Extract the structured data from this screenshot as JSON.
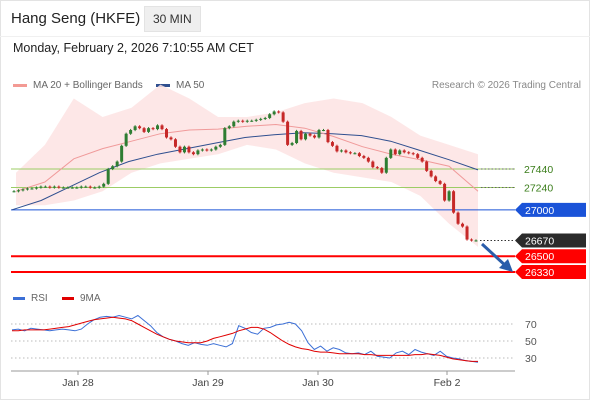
{
  "header": {
    "title": "Hang Seng (HKFE)",
    "timeframe": "30 MIN",
    "datetime": "Monday, February 2, 2026 7:10:55 AM CET"
  },
  "legend": {
    "ma20_label": "MA 20 + Bollinger Bands",
    "ma50_label": "MA 50",
    "credit": "Research © 2026 Trading Central"
  },
  "rsi_legend": {
    "rsi_label": "RSI",
    "ma_label": "9MA"
  },
  "colors": {
    "candle_up": "#2e7d32",
    "candle_down": "#c62828",
    "bollinger_fill": "#fde3e3",
    "ma20": "#f09a9a",
    "ma50": "#2f4f8f",
    "support": "#ff0000",
    "resistance": "#9ccc65",
    "pivot": "#1a53d8",
    "rsi": "#3b6fd6",
    "rsi_ma": "#e00000"
  },
  "chart_data": [
    {
      "type": "candlestick",
      "title": "Hang Seng (HKFE) 30 MIN",
      "x_ticks": [
        "Jan 28",
        "Jan 29",
        "Jan 30",
        "Feb 2"
      ],
      "y_range": [
        26200,
        28000
      ],
      "last_price": 26670,
      "levels": [
        {
          "value": 27440,
          "kind": "resistance",
          "label": "27440"
        },
        {
          "value": 27240,
          "kind": "resistance",
          "label": "27240"
        },
        {
          "value": 27000,
          "kind": "pivot",
          "label": "27000"
        },
        {
          "value": 26670,
          "kind": "last",
          "label": "26670"
        },
        {
          "value": 26500,
          "kind": "support",
          "label": "26500"
        },
        {
          "value": 26330,
          "kind": "support",
          "label": "26330"
        }
      ],
      "close_series": [
        27200,
        27210,
        27220,
        27230,
        27230,
        27240,
        27250,
        27250,
        27240,
        27250,
        27240,
        27240,
        27240,
        27240,
        27240,
        27250,
        27250,
        27240,
        27240,
        27250,
        27280,
        27440,
        27470,
        27520,
        27690,
        27820,
        27860,
        27900,
        27880,
        27840,
        27880,
        27870,
        27910,
        27870,
        27780,
        27760,
        27680,
        27620,
        27680,
        27620,
        27600,
        27640,
        27650,
        27640,
        27650,
        27680,
        27700,
        27880,
        27900,
        27950,
        27960,
        27950,
        27960,
        27960,
        27970,
        27980,
        27990,
        28030,
        28060,
        28050,
        27950,
        27700,
        27720,
        27850,
        27760,
        27820,
        27800,
        27780,
        27860,
        27860,
        27730,
        27690,
        27630,
        27640,
        27620,
        27610,
        27610,
        27580,
        27560,
        27520,
        27460,
        27450,
        27400,
        27560,
        27650,
        27600,
        27640,
        27620,
        27610,
        27600,
        27560,
        27520,
        27420,
        27360,
        27310,
        27280,
        27100,
        27200,
        26970,
        26850,
        26820,
        26680,
        26670,
        26670
      ],
      "bollinger_upper": [
        27400,
        27700,
        28200,
        28000,
        28100,
        28350,
        28200,
        28000,
        28000,
        28050,
        28150,
        28200,
        28150,
        28000,
        27800,
        27700,
        27600
      ],
      "bollinger_lower": [
        27050,
        27050,
        27100,
        27200,
        27400,
        27500,
        27550,
        27600,
        27700,
        27650,
        27500,
        27400,
        27350,
        27300,
        27150,
        26850,
        26600
      ],
      "ma20": [
        27200,
        27300,
        27550,
        27660,
        27740,
        27820,
        27860,
        27870,
        27900,
        27920,
        27880,
        27790,
        27680,
        27600,
        27540,
        27470,
        27200
      ],
      "ma50": [
        27000,
        27100,
        27250,
        27400,
        27520,
        27600,
        27660,
        27720,
        27780,
        27810,
        27830,
        27820,
        27800,
        27740,
        27640,
        27540,
        27430
      ]
    },
    {
      "type": "line",
      "title": "RSI",
      "y_ticks": [
        70,
        50,
        30
      ],
      "y_range": [
        15,
        85
      ],
      "series": [
        {
          "name": "RSI",
          "values": [
            63,
            64,
            62,
            65,
            64,
            63,
            62,
            63,
            64,
            63,
            62,
            64,
            70,
            75,
            78,
            79,
            78,
            80,
            78,
            76,
            80,
            74,
            68,
            60,
            55,
            52,
            50,
            47,
            45,
            48,
            46,
            45,
            47,
            45,
            43,
            47,
            68,
            65,
            60,
            58,
            65,
            66,
            69,
            70,
            72,
            70,
            62,
            48,
            40,
            44,
            38,
            42,
            40,
            36,
            35,
            36,
            34,
            38,
            32,
            31,
            30,
            36,
            38,
            34,
            40,
            37,
            35,
            33,
            38,
            32,
            30,
            29,
            27,
            26,
            25
          ]
        },
        {
          "name": "9MA",
          "values": [
            62,
            62,
            63,
            63,
            63,
            63,
            64,
            65,
            66,
            67,
            69,
            71,
            73,
            75,
            76,
            77,
            78,
            77,
            76,
            74,
            70,
            66,
            62,
            58,
            55,
            52,
            50,
            49,
            48,
            48,
            48,
            50,
            53,
            55,
            57,
            59,
            62,
            64,
            66,
            66,
            64,
            60,
            55,
            50,
            46,
            43,
            41,
            40,
            38,
            37,
            37,
            36,
            35,
            35,
            35,
            35,
            34,
            34,
            33,
            33,
            33,
            33,
            33,
            33,
            34,
            34,
            35,
            34,
            33,
            31,
            29,
            28,
            27,
            26,
            26
          ]
        }
      ]
    }
  ]
}
